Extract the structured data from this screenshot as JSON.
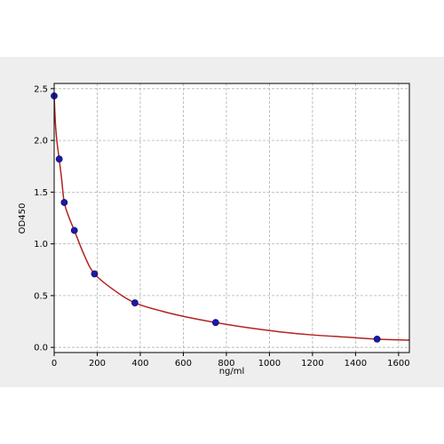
{
  "chart_data": {
    "type": "scatter",
    "title": "",
    "xlabel": "ng/ml",
    "ylabel": "OD450",
    "xlim": [
      0,
      1650
    ],
    "ylim": [
      -0.05,
      2.55
    ],
    "xticks": [
      0,
      200,
      400,
      600,
      800,
      1000,
      1200,
      1400,
      1600
    ],
    "yticks": [
      0.0,
      0.5,
      1.0,
      1.5,
      2.0,
      2.5
    ],
    "xtick_labels": [
      "0",
      "200",
      "400",
      "600",
      "800",
      "1000",
      "1200",
      "1400",
      "1600"
    ],
    "ytick_labels": [
      "0.0",
      "0.5",
      "1.0",
      "1.5",
      "2.0",
      "2.5"
    ],
    "grid": true,
    "series": [
      {
        "kind": "points",
        "color": "#1a1aa8",
        "x": [
          0,
          23.4,
          46.9,
          93.75,
          187.5,
          375,
          750,
          1500
        ],
        "y": [
          2.43,
          1.82,
          1.4,
          1.13,
          0.71,
          0.43,
          0.24,
          0.08
        ]
      },
      {
        "kind": "fitted-curve",
        "color": "#b22222",
        "x": [
          0,
          5,
          10,
          15,
          23.4,
          35,
          46.9,
          70,
          93.75,
          140,
          187.5,
          280,
          375,
          500,
          600,
          750,
          900,
          1050,
          1200,
          1350,
          1500,
          1650
        ],
        "y": [
          2.43,
          2.19,
          2.05,
          1.95,
          1.82,
          1.62,
          1.4,
          1.25,
          1.13,
          0.89,
          0.71,
          0.55,
          0.43,
          0.35,
          0.3,
          0.24,
          0.19,
          0.15,
          0.12,
          0.1,
          0.08,
          0.07
        ]
      }
    ]
  }
}
